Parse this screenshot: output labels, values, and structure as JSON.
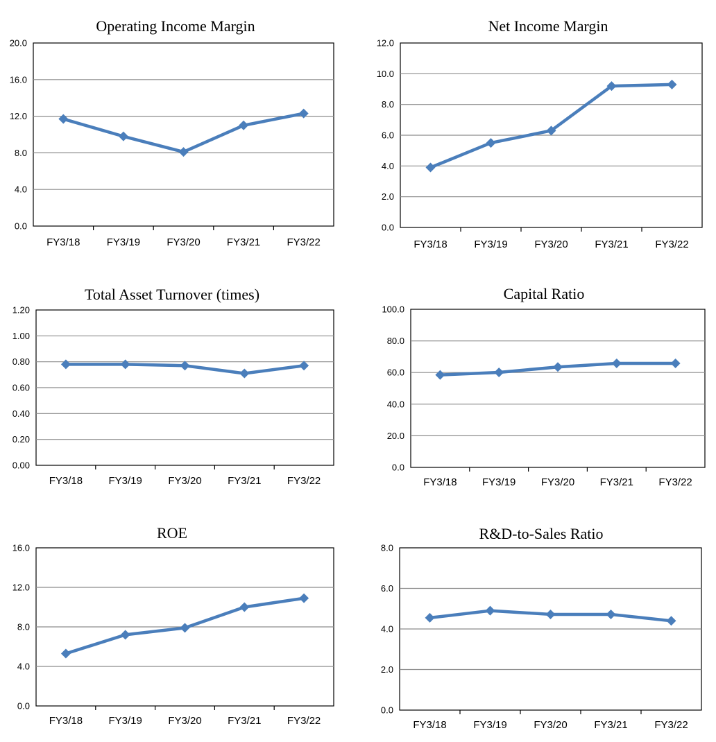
{
  "chart_data": [
    {
      "type": "line",
      "title": "Operating Income Margin",
      "categories": [
        "FY3/18",
        "FY3/19",
        "FY3/20",
        "FY3/21",
        "FY3/22"
      ],
      "series": [
        {
          "values": [
            11.7,
            9.8,
            8.1,
            11.0,
            12.3
          ]
        }
      ],
      "ylim": [
        0,
        20
      ],
      "yticks": [
        "0.0",
        "4.0",
        "8.0",
        "12.0",
        "16.0",
        "20.0"
      ],
      "grid": true,
      "color": "#4a7ebb",
      "marker": "diamond"
    },
    {
      "type": "line",
      "title": "Net Income Margin",
      "categories": [
        "FY3/18",
        "FY3/19",
        "FY3/20",
        "FY3/21",
        "FY3/22"
      ],
      "series": [
        {
          "values": [
            3.9,
            5.5,
            6.3,
            9.2,
            9.3
          ]
        }
      ],
      "ylim": [
        0,
        12
      ],
      "yticks": [
        "0.0",
        "2.0",
        "4.0",
        "6.0",
        "8.0",
        "10.0",
        "12.0"
      ],
      "grid": true,
      "color": "#4a7ebb",
      "marker": "diamond"
    },
    {
      "type": "line",
      "title": "Total Asset Turnover (times)",
      "categories": [
        "FY3/18",
        "FY3/19",
        "FY3/20",
        "FY3/21",
        "FY3/22"
      ],
      "series": [
        {
          "values": [
            0.78,
            0.78,
            0.77,
            0.71,
            0.77
          ]
        }
      ],
      "ylim": [
        0,
        1.2
      ],
      "yticks": [
        "0.00",
        "0.20",
        "0.40",
        "0.60",
        "0.80",
        "1.00",
        "1.20"
      ],
      "grid": true,
      "color": "#4a7ebb",
      "marker": "diamond"
    },
    {
      "type": "line",
      "title": "Capital Ratio",
      "categories": [
        "FY3/18",
        "FY3/19",
        "FY3/20",
        "FY3/21",
        "FY3/22"
      ],
      "series": [
        {
          "values": [
            58.5,
            60.1,
            63.5,
            65.8,
            65.8
          ]
        }
      ],
      "ylim": [
        0,
        100
      ],
      "yticks": [
        "0.0",
        "20.0",
        "40.0",
        "60.0",
        "80.0",
        "100.0"
      ],
      "grid": true,
      "color": "#4a7ebb",
      "marker": "diamond"
    },
    {
      "type": "line",
      "title": "ROE",
      "categories": [
        "FY3/18",
        "FY3/19",
        "FY3/20",
        "FY3/21",
        "FY3/22"
      ],
      "series": [
        {
          "values": [
            5.3,
            7.2,
            7.9,
            10.0,
            10.9
          ]
        }
      ],
      "ylim": [
        0,
        16
      ],
      "yticks": [
        "0.0",
        "4.0",
        "8.0",
        "12.0",
        "16.0"
      ],
      "grid": true,
      "color": "#4a7ebb",
      "marker": "diamond"
    },
    {
      "type": "line",
      "title": "R&D-to-Sales Ratio",
      "categories": [
        "FY3/18",
        "FY3/19",
        "FY3/20",
        "FY3/21",
        "FY3/22"
      ],
      "series": [
        {
          "values": [
            4.55,
            4.9,
            4.72,
            4.72,
            4.4
          ]
        }
      ],
      "ylim": [
        0,
        8
      ],
      "yticks": [
        "0.0",
        "2.0",
        "4.0",
        "6.0",
        "8.0"
      ],
      "grid": true,
      "color": "#4a7ebb",
      "marker": "diamond"
    }
  ]
}
